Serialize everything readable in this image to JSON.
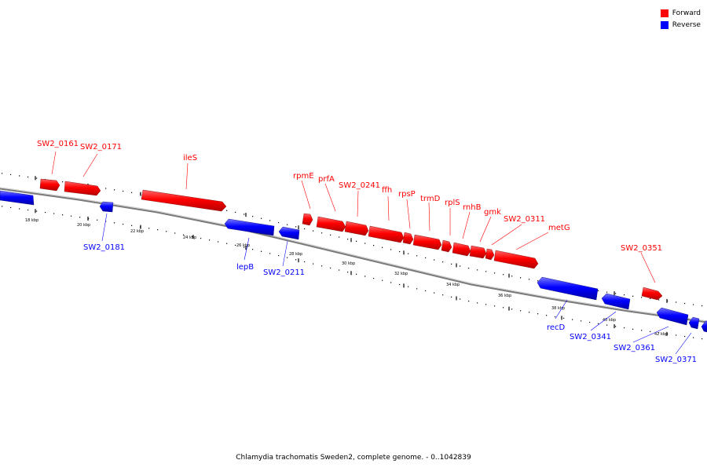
{
  "legend": {
    "forward_label": "Forward",
    "reverse_label": "Reverse",
    "forward_color": "#ff0000",
    "reverse_color": "#0000ff"
  },
  "footer": {
    "caption": "Chlamydia trachomatis Sweden2, complete genome. - 0..1042839"
  },
  "scale": {
    "ticks": [
      "18 kbp",
      "20 kbp",
      "22 kbp",
      "24 kbp",
      "26 kbp",
      "28 kbp",
      "30 kbp",
      "32 kbp",
      "34 kbp",
      "36 kbp",
      "38 kbp",
      "40 kbp",
      "42 kbp"
    ]
  },
  "genes": {
    "forward": [
      "SW2_0161",
      "SW2_0171",
      "ileS",
      "rpmE",
      "prfA",
      "SW2_0241",
      "ffh",
      "rpsP",
      "trmD",
      "rplS",
      "rnhB",
      "gmk",
      "SW2_0311",
      "metG",
      "SW2_0351"
    ],
    "reverse": [
      "SW2_0181",
      "lepB",
      "SW2_0211",
      "recD",
      "SW2_0341",
      "SW2_0361",
      "SW2_0371"
    ]
  }
}
